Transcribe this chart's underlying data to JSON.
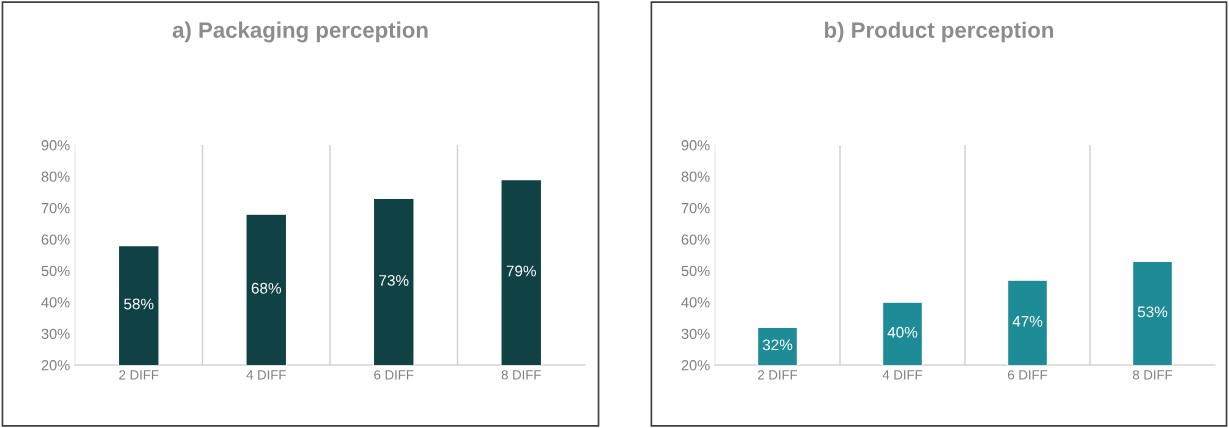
{
  "chart_data": [
    {
      "type": "bar",
      "title": "a) Packaging perception",
      "categories": [
        "2 DIFF",
        "4 DIFF",
        "6 DIFF",
        "8 DIFF"
      ],
      "values": [
        58,
        68,
        73,
        79
      ],
      "value_labels": [
        "58%",
        "68%",
        "73%",
        "79%"
      ],
      "color": "#0f4145",
      "ylim": [
        20,
        90
      ],
      "yticks": [
        {
          "value": 20,
          "label": "20%"
        },
        {
          "value": 30,
          "label": "30%"
        },
        {
          "value": 40,
          "label": "40%"
        },
        {
          "value": 50,
          "label": "50%"
        },
        {
          "value": 60,
          "label": "60%"
        },
        {
          "value": 70,
          "label": "70%"
        },
        {
          "value": 80,
          "label": "80%"
        },
        {
          "value": 90,
          "label": "90%"
        }
      ],
      "grid": "x",
      "legend": false
    },
    {
      "type": "bar",
      "title": "b) Product perception",
      "categories": [
        "2 DIFF",
        "4 DIFF",
        "6 DIFF",
        "8 DIFF"
      ],
      "values": [
        32,
        40,
        47,
        53
      ],
      "value_labels": [
        "32%",
        "40%",
        "47%",
        "53%"
      ],
      "color": "#1e8c96",
      "ylim": [
        20,
        90
      ],
      "yticks": [
        {
          "value": 20,
          "label": "20%"
        },
        {
          "value": 30,
          "label": "30%"
        },
        {
          "value": 40,
          "label": "40%"
        },
        {
          "value": 50,
          "label": "50%"
        },
        {
          "value": 60,
          "label": "60%"
        },
        {
          "value": 70,
          "label": "70%"
        },
        {
          "value": 80,
          "label": "80%"
        },
        {
          "value": 90,
          "label": "90%"
        }
      ],
      "grid": "x",
      "legend": false
    }
  ]
}
